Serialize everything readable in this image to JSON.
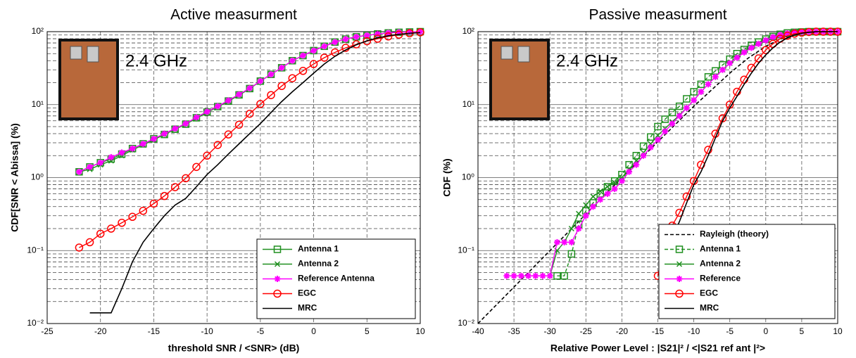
{
  "chart_data": [
    {
      "type": "line",
      "title": "Active measurment",
      "x_label": "threshold SNR / <SNR> (dB)",
      "y_label": "CDF[SNR < Abissa] (%)",
      "annotation": "2.4 GHz",
      "yscale": "log",
      "grid": true,
      "legend": "lower right",
      "xlim": [
        -25,
        10
      ],
      "xticks": [
        -25,
        -20,
        -15,
        -10,
        -5,
        0,
        5,
        10
      ],
      "ylim": [
        0.01,
        100
      ],
      "yticks": [
        {
          "value": 0.01,
          "label": "10⁻²"
        },
        {
          "value": 0.1,
          "label": "10⁻¹"
        },
        {
          "value": 1,
          "label": "10⁰"
        },
        {
          "value": 10,
          "label": "10¹"
        },
        {
          "value": 100,
          "label": "10²"
        }
      ],
      "series": [
        {
          "name": "Antenna 1",
          "color": "#1f8f1f",
          "marker": "square",
          "dash": false,
          "x": [
            -22,
            -21,
            -20,
            -19,
            -18,
            -17,
            -16,
            -15,
            -14,
            -13,
            -12,
            -11,
            -10,
            -9,
            -8,
            -7,
            -6,
            -5,
            -4,
            -3,
            -2,
            -1,
            0,
            1,
            2,
            3,
            4,
            5,
            6,
            7,
            8,
            9,
            10
          ],
          "values": [
            1.2,
            1.4,
            1.6,
            1.8,
            2.1,
            2.5,
            2.9,
            3.4,
            3.9,
            4.6,
            5.4,
            6.6,
            7.9,
            9.4,
            11.2,
            13.6,
            16.6,
            21,
            26,
            32,
            40,
            47,
            55,
            63,
            72,
            79,
            85,
            89,
            93,
            96,
            98,
            99,
            100
          ]
        },
        {
          "name": "Antenna 2",
          "color": "#1f8f1f",
          "marker": "x",
          "dash": false,
          "x": [
            -22,
            -21,
            -20,
            -19,
            -18,
            -17,
            -16,
            -15,
            -14,
            -13,
            -12,
            -11,
            -10,
            -9,
            -8,
            -7,
            -6,
            -5,
            -4,
            -3,
            -2,
            -1,
            0,
            1,
            2,
            3,
            4,
            5,
            6,
            7,
            8,
            9,
            10
          ],
          "values": [
            1.2,
            1.3,
            1.5,
            1.7,
            2.0,
            2.4,
            2.8,
            3.3,
            3.9,
            4.6,
            5.4,
            6.5,
            7.8,
            9.3,
            11.1,
            13.5,
            16.5,
            21,
            26,
            32,
            40,
            47,
            55,
            63,
            72,
            79,
            85,
            89,
            93,
            96,
            98,
            99,
            100
          ]
        },
        {
          "name": "Reference Antenna",
          "color": "#ff00ff",
          "marker": "star",
          "dash": false,
          "x": [
            -22,
            -21,
            -20,
            -19,
            -18,
            -17,
            -16,
            -15,
            -14,
            -13,
            -12,
            -11,
            -10,
            -9,
            -8,
            -7,
            -6,
            -5,
            -4,
            -3,
            -2,
            -1,
            0,
            1,
            2,
            3,
            4,
            5,
            6,
            7,
            8,
            9,
            10
          ],
          "values": [
            1.2,
            1.4,
            1.6,
            1.9,
            2.2,
            2.5,
            2.9,
            3.4,
            4.0,
            4.7,
            5.5,
            6.7,
            8.0,
            9.5,
            11.4,
            13.8,
            16.8,
            21,
            26,
            32,
            40,
            47,
            55,
            63,
            72,
            79,
            85,
            89,
            93,
            96,
            98,
            99,
            100
          ]
        },
        {
          "name": "EGC",
          "color": "#ff0000",
          "marker": "circle",
          "dash": false,
          "x": [
            -22,
            -21,
            -20,
            -19,
            -18,
            -17,
            -16,
            -15,
            -14,
            -13,
            -12,
            -11,
            -10,
            -9,
            -8,
            -7,
            -6,
            -5,
            -4,
            -3,
            -2,
            -1,
            0,
            1,
            2,
            3,
            4,
            5,
            6,
            7,
            8,
            9,
            10
          ],
          "values": [
            0.11,
            0.13,
            0.17,
            0.2,
            0.24,
            0.29,
            0.35,
            0.44,
            0.56,
            0.74,
            0.98,
            1.4,
            2.0,
            2.8,
            3.9,
            5.3,
            7.5,
            10.2,
            13.5,
            18,
            23,
            29,
            36,
            44,
            52,
            60,
            67,
            74,
            80,
            86,
            91,
            95,
            98
          ]
        },
        {
          "name": "MRC",
          "color": "#000000",
          "marker": "none",
          "dash": false,
          "x": [
            -21,
            -20,
            -19,
            -18,
            -17,
            -16,
            -15,
            -14,
            -13,
            -12,
            -11,
            -10,
            -9,
            -8,
            -7,
            -6,
            -5,
            -4,
            -3,
            -2,
            -1,
            0,
            1,
            2,
            3,
            4,
            5,
            6,
            7,
            8,
            9,
            10
          ],
          "values": [
            0.014,
            0.014,
            0.014,
            0.03,
            0.07,
            0.13,
            0.2,
            0.3,
            0.42,
            0.52,
            0.75,
            1.1,
            1.5,
            2.1,
            2.9,
            4.0,
            5.5,
            7.8,
            11,
            15,
            20,
            27,
            36,
            46,
            56,
            66,
            75,
            82,
            88,
            92,
            95,
            97
          ]
        }
      ]
    },
    {
      "type": "line",
      "title": "Passive measurment",
      "x_label": "Relative Power Level : |S21|² / <|S21 ref ant |²>",
      "y_label": "CDF (%)",
      "annotation": "2.4 GHz",
      "yscale": "log",
      "grid": true,
      "legend": "lower right",
      "xlim": [
        -40,
        10
      ],
      "xticks": [
        -40,
        -35,
        -30,
        -25,
        -20,
        -15,
        -10,
        -5,
        0,
        5,
        10
      ],
      "ylim": [
        0.01,
        100
      ],
      "yticks": [
        {
          "value": 0.01,
          "label": "10⁻²"
        },
        {
          "value": 0.1,
          "label": "10⁻¹"
        },
        {
          "value": 1,
          "label": "10⁰"
        },
        {
          "value": 10,
          "label": "10¹"
        },
        {
          "value": 100,
          "label": "10²"
        }
      ],
      "series": [
        {
          "name": "Rayleigh (theory)",
          "color": "#000000",
          "marker": "none",
          "dash": true,
          "x": [
            -40,
            -35,
            -30,
            -25,
            -20,
            -15,
            -10,
            -5,
            -2.5,
            0,
            2.5,
            5,
            10
          ],
          "values": [
            0.01,
            0.0316,
            0.1,
            0.316,
            1.0,
            3.1,
            9.5,
            27,
            43,
            63,
            83,
            96,
            100
          ]
        },
        {
          "name": "Antenna 1",
          "color": "#1f8f1f",
          "marker": "square",
          "dash": true,
          "x": [
            -29,
            -28,
            -27,
            -26,
            -25,
            -24,
            -23,
            -22,
            -21,
            -20,
            -19,
            -18,
            -17,
            -16,
            -15,
            -14,
            -13,
            -12,
            -11,
            -10,
            -9,
            -8,
            -7,
            -6,
            -5,
            -4,
            -3,
            -2,
            -1,
            0,
            1,
            2,
            3,
            4,
            5,
            6,
            7,
            8,
            9,
            10
          ],
          "values": [
            0.045,
            0.045,
            0.09,
            0.23,
            0.35,
            0.45,
            0.6,
            0.75,
            0.9,
            1.1,
            1.5,
            2.0,
            2.7,
            3.6,
            5.0,
            6.3,
            7.8,
            9.5,
            12,
            15,
            19,
            24,
            29,
            35,
            42,
            50,
            57,
            65,
            72,
            79,
            86,
            92,
            96,
            98,
            99,
            100,
            100,
            100,
            100,
            100
          ]
        },
        {
          "name": "Antenna 2",
          "color": "#1f8f1f",
          "marker": "x",
          "dash": false,
          "x": [
            -30,
            -29,
            -28,
            -27,
            -26,
            -25,
            -24,
            -23,
            -22,
            -21,
            -20,
            -19,
            -18,
            -17,
            -16,
            -15,
            -14,
            -13,
            -12,
            -11,
            -10,
            -9,
            -8,
            -7,
            -6,
            -5,
            -4,
            -3,
            -2,
            -1,
            0,
            1,
            2,
            3,
            4,
            5,
            6,
            7,
            8,
            9,
            10
          ],
          "values": [
            0.045,
            0.1,
            0.13,
            0.2,
            0.32,
            0.42,
            0.55,
            0.65,
            0.75,
            0.85,
            1.0,
            1.3,
            1.7,
            2.2,
            2.9,
            3.8,
            4.7,
            5.8,
            7.2,
            9,
            11.5,
            15,
            19,
            24,
            30,
            37,
            45,
            53,
            61,
            69,
            77,
            85,
            91,
            95,
            98,
            99,
            100,
            100,
            100,
            100,
            100
          ]
        },
        {
          "name": "Reference",
          "color": "#ff00ff",
          "marker": "star",
          "dash": false,
          "x": [
            -36,
            -35,
            -34,
            -33,
            -32,
            -31,
            -30,
            -29,
            -28,
            -27,
            -26,
            -25,
            -24,
            -23,
            -22,
            -21,
            -20,
            -19,
            -18,
            -17,
            -16,
            -15,
            -14,
            -13,
            -12,
            -11,
            -10,
            -9,
            -8,
            -7,
            -6,
            -5,
            -4,
            -3,
            -2,
            -1,
            0,
            1,
            2,
            3,
            4,
            5,
            6,
            7,
            8,
            9,
            10
          ],
          "values": [
            0.045,
            0.045,
            0.045,
            0.045,
            0.045,
            0.045,
            0.045,
            0.13,
            0.13,
            0.13,
            0.2,
            0.3,
            0.4,
            0.5,
            0.6,
            0.7,
            0.9,
            1.2,
            1.5,
            2.0,
            2.6,
            3.3,
            4.3,
            5.5,
            7,
            9,
            11.5,
            15,
            19,
            24,
            30,
            37,
            44,
            52,
            60,
            68,
            76,
            84,
            90,
            95,
            98,
            99,
            100,
            100,
            100,
            100,
            100
          ]
        },
        {
          "name": "EGC",
          "color": "#ff0000",
          "marker": "circle",
          "dash": false,
          "x": [
            -15,
            -14,
            -13,
            -12,
            -11,
            -10,
            -9,
            -8,
            -7,
            -6,
            -5,
            -4,
            -3,
            -2,
            -1,
            0,
            1,
            2,
            3,
            4,
            5,
            6,
            7,
            8,
            9,
            10
          ],
          "values": [
            0.045,
            0.14,
            0.22,
            0.33,
            0.55,
            0.9,
            1.5,
            2.4,
            4,
            6.5,
            10,
            15,
            22,
            32,
            43,
            56,
            68,
            80,
            88,
            94,
            97,
            99,
            100,
            100,
            100,
            100
          ]
        },
        {
          "name": "MRC",
          "color": "#000000",
          "marker": "none",
          "dash": false,
          "x": [
            -14,
            -13,
            -12,
            -11,
            -10,
            -9,
            -8,
            -7,
            -6,
            -5,
            -4,
            -3,
            -2,
            -1,
            0,
            1,
            2,
            3,
            4,
            5,
            6,
            7,
            8,
            9,
            10
          ],
          "values": [
            0.045,
            0.15,
            0.25,
            0.45,
            0.8,
            1.2,
            2.0,
            3.5,
            6,
            9,
            13,
            19,
            27,
            37,
            48,
            60,
            72,
            82,
            90,
            95,
            98,
            100,
            100,
            100,
            100
          ]
        }
      ]
    }
  ]
}
